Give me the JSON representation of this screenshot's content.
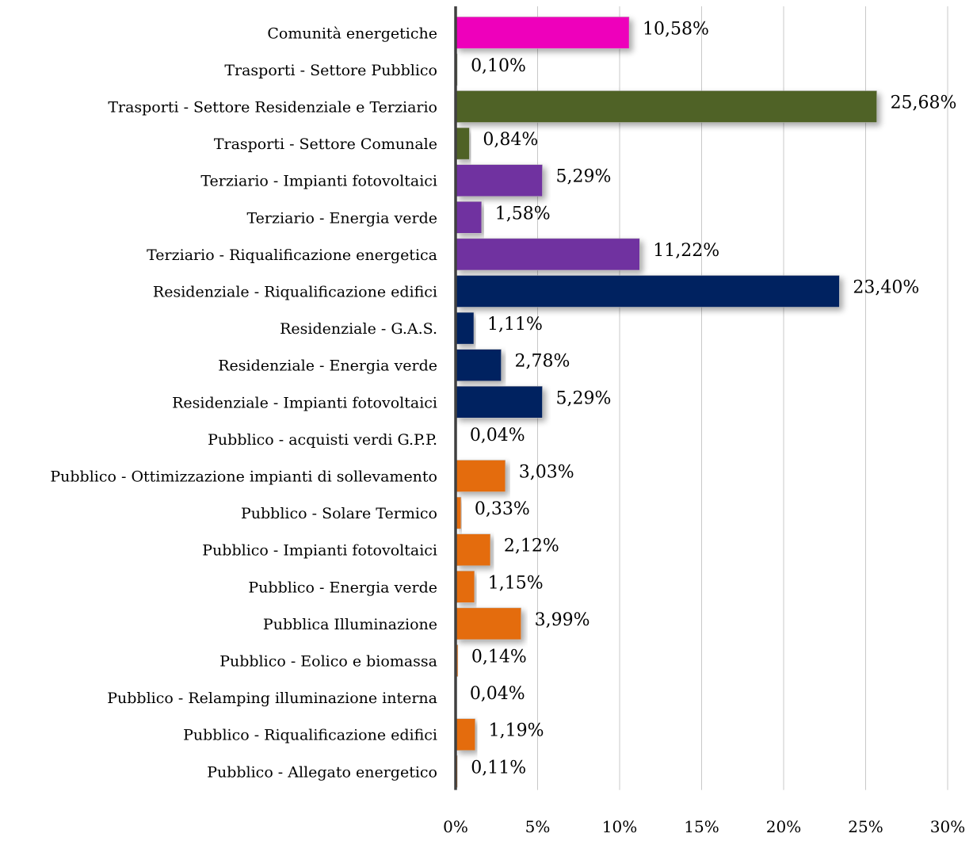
{
  "chart_data": {
    "type": "bar",
    "orientation": "horizontal",
    "title": "",
    "xlabel": "",
    "ylabel": "",
    "xlim": [
      0,
      30
    ],
    "x_ticks": [
      "0%",
      "5%",
      "10%",
      "15%",
      "20%",
      "25%",
      "30%"
    ],
    "x_tick_values": [
      0,
      5,
      10,
      15,
      20,
      25,
      30
    ],
    "grid": "vertical",
    "legend": "none",
    "bars": [
      {
        "category": "Comunità energetiche",
        "value": 10.58,
        "label": "10,58%",
        "color": "#EE00BB"
      },
      {
        "category": "Trasporti - Settore Pubblico",
        "value": 0.1,
        "label": "0,10%",
        "color": "#4F6228"
      },
      {
        "category": "Trasporti - Settore Residenziale e Terziario",
        "value": 25.68,
        "label": "25,68%",
        "color": "#4F6228"
      },
      {
        "category": "Trasporti - Settore Comunale",
        "value": 0.84,
        "label": "0,84%",
        "color": "#4F6228"
      },
      {
        "category": "Terziario - Impianti fotovoltaici",
        "value": 5.29,
        "label": "5,29%",
        "color": "#7030A0"
      },
      {
        "category": "Terziario - Energia verde",
        "value": 1.58,
        "label": "1,58%",
        "color": "#7030A0"
      },
      {
        "category": "Terziario - Riqualificazione energetica",
        "value": 11.22,
        "label": "11,22%",
        "color": "#7030A0"
      },
      {
        "category": "Residenziale - Riqualificazione edifici",
        "value": 23.4,
        "label": "23,40%",
        "color": "#002060"
      },
      {
        "category": "Residenziale - G.A.S.",
        "value": 1.11,
        "label": "1,11%",
        "color": "#002060"
      },
      {
        "category": "Residenziale - Energia verde",
        "value": 2.78,
        "label": "2,78%",
        "color": "#002060"
      },
      {
        "category": "Residenziale - Impianti fotovoltaici",
        "value": 5.29,
        "label": "5,29%",
        "color": "#002060"
      },
      {
        "category": "Pubblico - acquisti verdi G.P.P.",
        "value": 0.04,
        "label": "0,04%",
        "color": "#E46C0A"
      },
      {
        "category": "Pubblico - Ottimizzazione impianti di sollevamento",
        "value": 3.03,
        "label": "3,03%",
        "color": "#E46C0A"
      },
      {
        "category": "Pubblico - Solare Termico",
        "value": 0.33,
        "label": "0,33%",
        "color": "#E46C0A"
      },
      {
        "category": "Pubblico - Impianti fotovoltaici",
        "value": 2.12,
        "label": "2,12%",
        "color": "#E46C0A"
      },
      {
        "category": "Pubblico - Energia verde",
        "value": 1.15,
        "label": "1,15%",
        "color": "#E46C0A"
      },
      {
        "category": "Pubblica Illuminazione",
        "value": 3.99,
        "label": "3,99%",
        "color": "#E46C0A"
      },
      {
        "category": "Pubblico - Eolico e biomassa",
        "value": 0.14,
        "label": "0,14%",
        "color": "#E46C0A"
      },
      {
        "category": "Pubblico - Relamping illuminazione interna",
        "value": 0.04,
        "label": "0,04%",
        "color": "#E46C0A"
      },
      {
        "category": "Pubblico - Riqualificazione edifici",
        "value": 1.19,
        "label": "1,19%",
        "color": "#E46C0A"
      },
      {
        "category": "Pubblico - Allegato energetico",
        "value": 0.11,
        "label": "0,11%",
        "color": "#E46C0A"
      }
    ]
  }
}
